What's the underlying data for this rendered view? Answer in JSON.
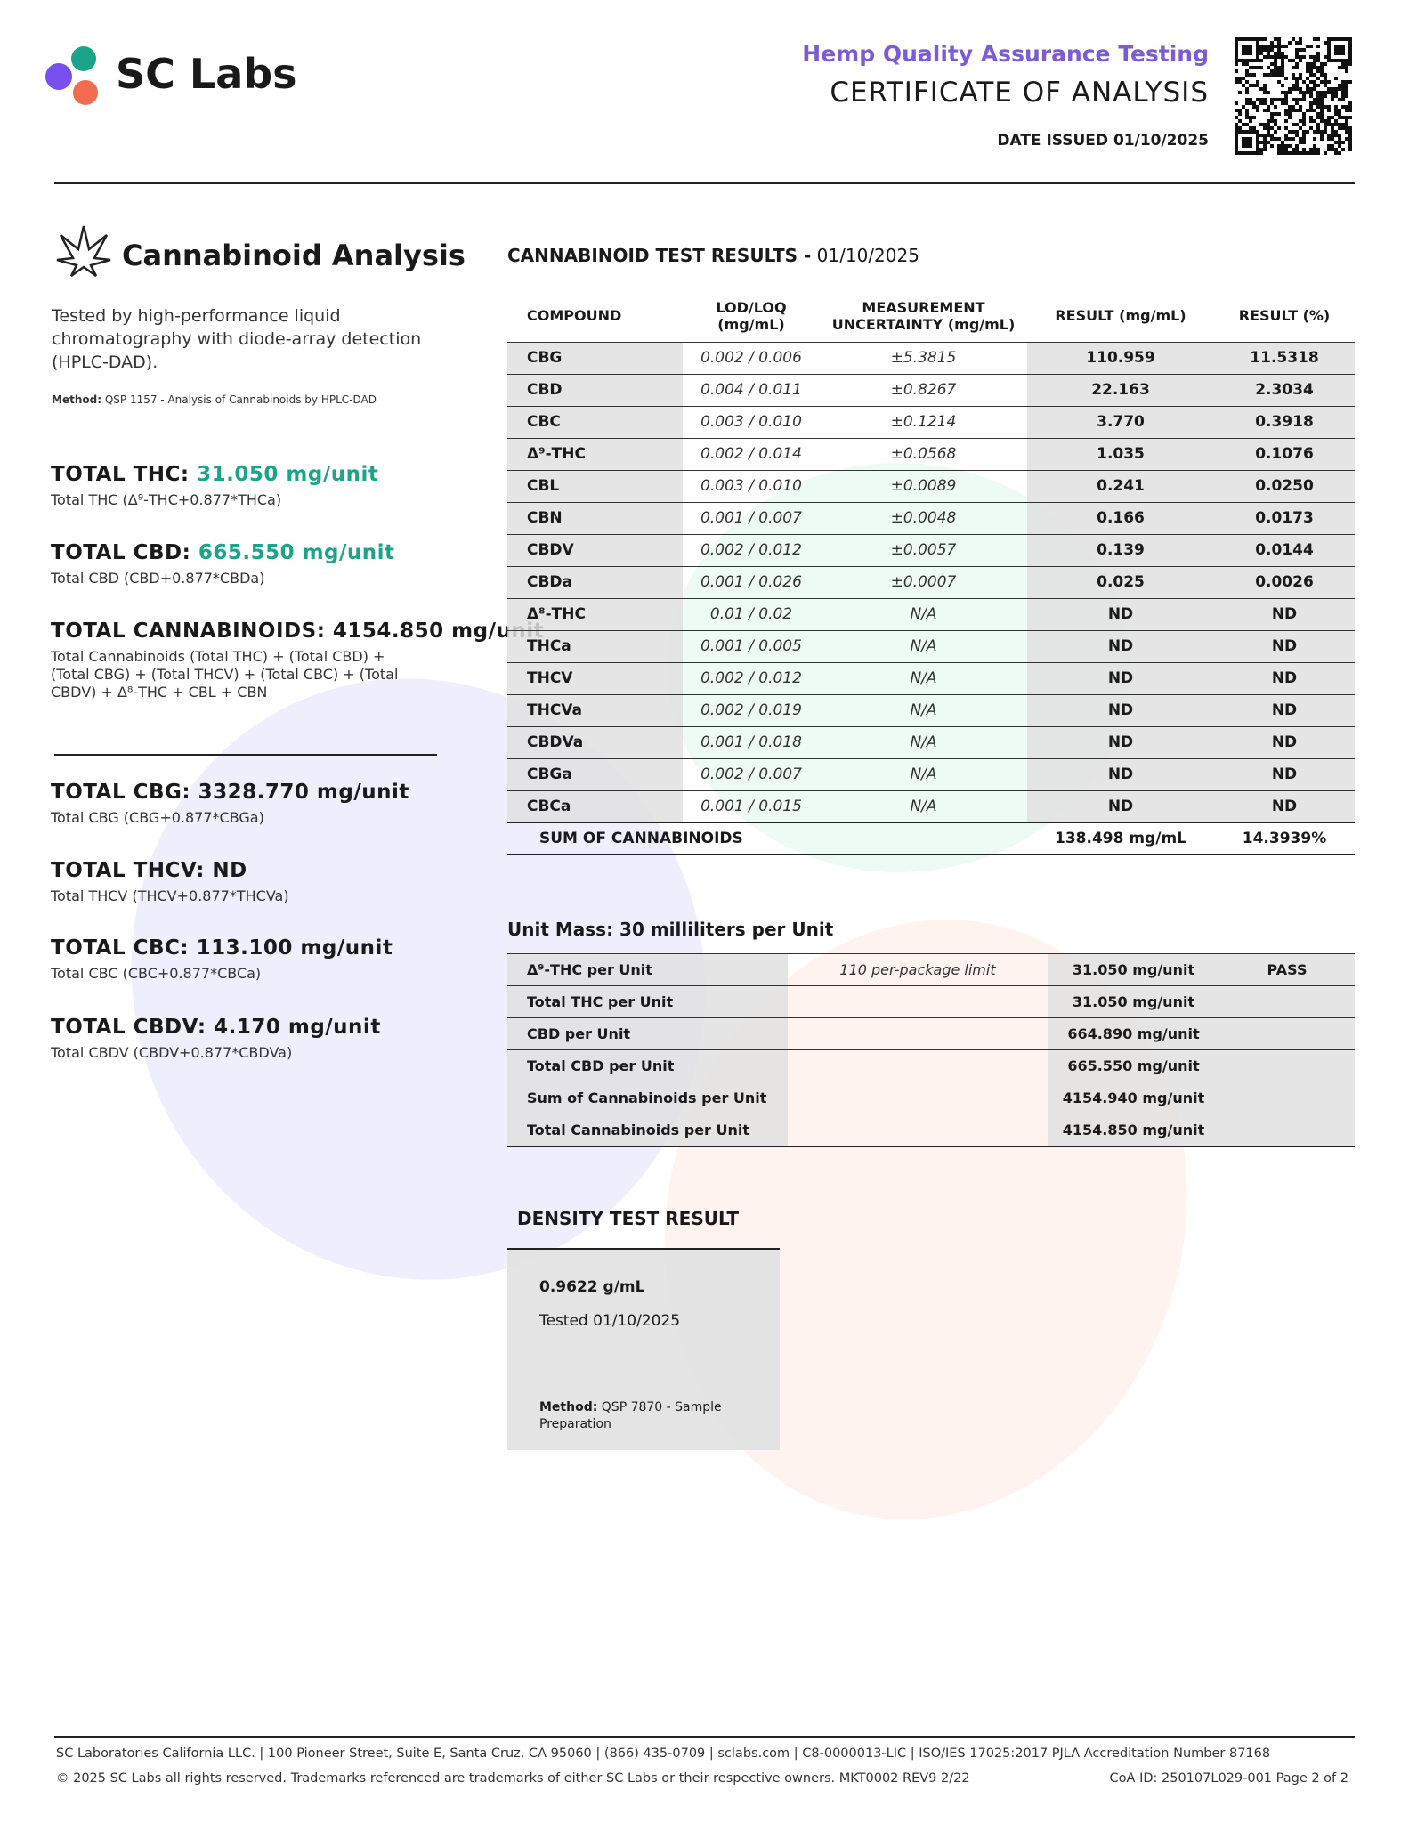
{
  "header": {
    "brand": "SC Labs",
    "subtitle": "Hemp Quality Assurance Testing",
    "title": "CERTIFICATE OF ANALYSIS",
    "date_issued": "DATE ISSUED 01/10/2025"
  },
  "analysis": {
    "title": "Cannabinoid Analysis",
    "description": "Tested by high-performance liquid chromatography with diode-array detection (HPLC-DAD).",
    "method_label": "Method:",
    "method": "QSP 1157 - Analysis of Cannabinoids by HPLC-DAD"
  },
  "totals_a": [
    {
      "label": "TOTAL THC:",
      "value": "31.050 mg/unit",
      "formula": "Total THC (Δ⁹-THC+0.877*THCa)"
    },
    {
      "label": "TOTAL CBD:",
      "value": "665.550 mg/unit",
      "formula": "Total CBD (CBD+0.877*CBDa)"
    },
    {
      "label": "TOTAL CANNABINOIDS:",
      "value": "4154.850 mg/unit",
      "formula": "Total Cannabinoids (Total THC) + (Total CBD) + (Total CBG) + (Total THCV) + (Total CBC) + (Total CBDV) + Δ⁸-THC + CBL + CBN"
    }
  ],
  "totals_b": [
    {
      "label": "TOTAL CBG:",
      "value": "3328.770 mg/unit",
      "formula": "Total CBG (CBG+0.877*CBGa)"
    },
    {
      "label": "TOTAL THCV:",
      "value": "ND",
      "formula": "Total THCV (THCV+0.877*THCVa)"
    },
    {
      "label": "TOTAL CBC:",
      "value": "113.100 mg/unit",
      "formula": "Total CBC (CBC+0.877*CBCa)"
    },
    {
      "label": "TOTAL CBDV:",
      "value": "4.170 mg/unit",
      "formula": "Total CBDV (CBDV+0.877*CBDVa)"
    }
  ],
  "results": {
    "title": "CANNABINOID TEST RESULTS -",
    "date": "01/10/2025",
    "columns": [
      "COMPOUND",
      "LOD/LOQ (mg/mL)",
      "MEASUREMENT UNCERTAINTY (mg/mL)",
      "RESULT (mg/mL)",
      "RESULT (%)"
    ],
    "rows": [
      [
        "CBG",
        "0.002 / 0.006",
        "±5.3815",
        "110.959",
        "11.5318"
      ],
      [
        "CBD",
        "0.004 / 0.011",
        "±0.8267",
        "22.163",
        "2.3034"
      ],
      [
        "CBC",
        "0.003 / 0.010",
        "±0.1214",
        "3.770",
        "0.3918"
      ],
      [
        "Δ⁹-THC",
        "0.002 / 0.014",
        "±0.0568",
        "1.035",
        "0.1076"
      ],
      [
        "CBL",
        "0.003 / 0.010",
        "±0.0089",
        "0.241",
        "0.0250"
      ],
      [
        "CBN",
        "0.001 / 0.007",
        "±0.0048",
        "0.166",
        "0.0173"
      ],
      [
        "CBDV",
        "0.002 / 0.012",
        "±0.0057",
        "0.139",
        "0.0144"
      ],
      [
        "CBDa",
        "0.001 / 0.026",
        "±0.0007",
        "0.025",
        "0.0026"
      ],
      [
        "Δ⁸-THC",
        "0.01 / 0.02",
        "N/A",
        "ND",
        "ND"
      ],
      [
        "THCa",
        "0.001 / 0.005",
        "N/A",
        "ND",
        "ND"
      ],
      [
        "THCV",
        "0.002 / 0.012",
        "N/A",
        "ND",
        "ND"
      ],
      [
        "THCVa",
        "0.002 / 0.019",
        "N/A",
        "ND",
        "ND"
      ],
      [
        "CBDVa",
        "0.001 / 0.018",
        "N/A",
        "ND",
        "ND"
      ],
      [
        "CBGa",
        "0.002 / 0.007",
        "N/A",
        "ND",
        "ND"
      ],
      [
        "CBCa",
        "0.001 / 0.015",
        "N/A",
        "ND",
        "ND"
      ]
    ],
    "sum": {
      "label": "SUM OF CANNABINOIDS",
      "mg_ml": "138.498 mg/mL",
      "percent": "14.3939%"
    }
  },
  "unit": {
    "title": "Unit Mass: 30 milliliters per Unit",
    "rows": [
      {
        "label": "Δ⁹-THC per Unit",
        "note": "110 per-package limit",
        "value": "31.050 mg/unit",
        "status": "PASS"
      },
      {
        "label": "Total THC per Unit",
        "value": "31.050 mg/unit"
      },
      {
        "label": "CBD per Unit",
        "value": "664.890 mg/unit"
      },
      {
        "label": "Total CBD per Unit",
        "value": "665.550 mg/unit"
      },
      {
        "label": "Sum of Cannabinoids per Unit",
        "value": "4154.940 mg/unit"
      },
      {
        "label": "Total Cannabinoids per Unit",
        "value": "4154.850 mg/unit"
      }
    ]
  },
  "density": {
    "title": "DENSITY TEST RESULT",
    "value": "0.9622 g/mL",
    "tested": "Tested 01/10/2025",
    "method_label": "Method:",
    "method": "QSP 7870 - Sample Preparation"
  },
  "footer": {
    "line1": "SC Laboratories California LLC. | 100 Pioneer Street, Suite E, Santa Cruz, CA 95060 | (866) 435-0709 | sclabs.com | C8-0000013-LIC | ISO/IES 17025:2017 PJLA Accreditation Number 87168",
    "line2": "© 2025 SC Labs all rights reserved. Trademarks referenced are trademarks of either SC Labs or their respective owners. MKT0002 REV9 2/22",
    "coa": "CoA ID: 250107L029-001  Page 2 of 2"
  }
}
